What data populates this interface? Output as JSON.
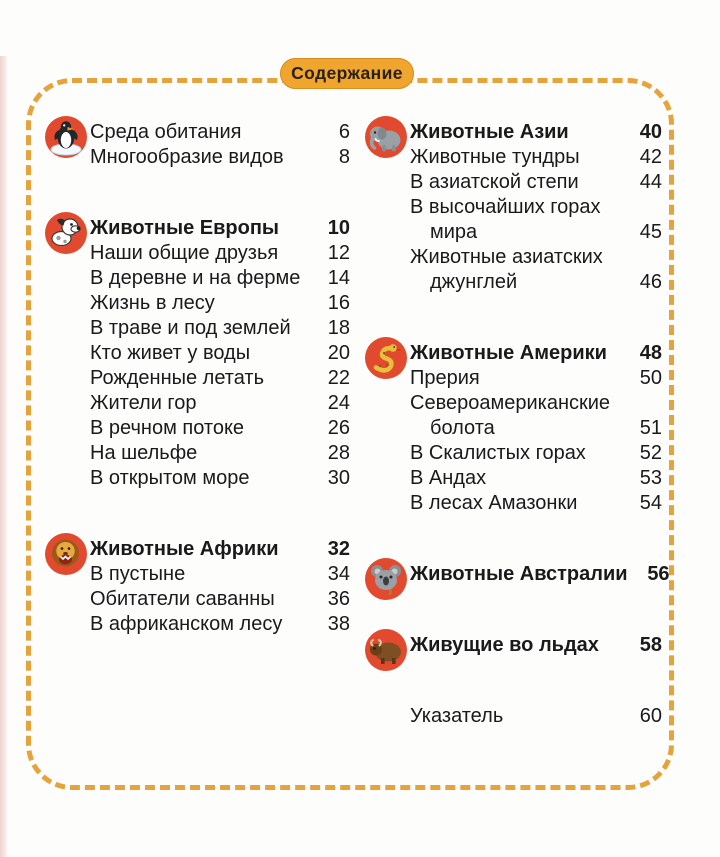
{
  "title": "Содержание",
  "colors": {
    "border_dash": "#e6a33c",
    "badge_bg": "#f0a52e",
    "badge_text": "#29200f",
    "icon_circle_bg": "#e14a2f",
    "text": "#1a1a1a"
  },
  "columns": [
    {
      "sections": [
        {
          "icon": "penguin-icon",
          "header": null,
          "rows": [
            {
              "label": "Среда обитания",
              "page": "6"
            },
            {
              "label": "Многообразие видов",
              "page": "8"
            }
          ]
        },
        {
          "icon": "dog-icon",
          "header": {
            "label": "Животные Европы",
            "page": "10"
          },
          "rows": [
            {
              "label": "Наши общие друзья",
              "page": "12"
            },
            {
              "label": "В деревне и на ферме",
              "page": "14"
            },
            {
              "label": "Жизнь в лесу",
              "page": "16"
            },
            {
              "label": "В траве и под землей",
              "page": "18"
            },
            {
              "label": "Кто живет у воды",
              "page": "20"
            },
            {
              "label": "Рожденные летать",
              "page": "22"
            },
            {
              "label": "Жители гор",
              "page": "24"
            },
            {
              "label": "В речном потоке",
              "page": "26"
            },
            {
              "label": "На шельфе",
              "page": "28"
            },
            {
              "label": "В открытом море",
              "page": "30"
            }
          ]
        },
        {
          "icon": "lion-icon",
          "header": {
            "label": "Животные Африки",
            "page": "32"
          },
          "rows": [
            {
              "label": "В пустыне",
              "page": "34"
            },
            {
              "label": "Обитатели саванны",
              "page": "36"
            },
            {
              "label": "В африканском лесу",
              "page": "38"
            }
          ]
        }
      ]
    },
    {
      "sections": [
        {
          "icon": "elephant-icon",
          "header": {
            "label": "Животные Азии",
            "page": "40"
          },
          "rows": [
            {
              "label": "Животные тундры",
              "page": "42"
            },
            {
              "label": "В азиатской степи",
              "page": "44"
            },
            {
              "label": "В высочайших горах",
              "page": ""
            },
            {
              "label": "мира",
              "page": "45",
              "indent": true
            },
            {
              "label": "Животные азиатских",
              "page": ""
            },
            {
              "label": "джунглей",
              "page": "46",
              "indent": true
            }
          ]
        },
        {
          "icon": "snake-icon",
          "header": {
            "label": "Животные Америки",
            "page": "48"
          },
          "rows": [
            {
              "label": "Прерия",
              "page": "50"
            },
            {
              "label": "Североамериканские",
              "page": ""
            },
            {
              "label": "болота",
              "page": "51",
              "indent": true
            },
            {
              "label": "В Скалистых горах",
              "page": "52"
            },
            {
              "label": "В Андах",
              "page": "53"
            },
            {
              "label": "В лесах Амазонки",
              "page": "54"
            }
          ]
        },
        {
          "icon": "koala-icon",
          "header": {
            "label": "Животные Австралии",
            "page": "56"
          },
          "rows": []
        },
        {
          "icon": "musk-ox-icon",
          "header": {
            "label": "Живущие во льдах",
            "page": "58"
          },
          "rows": []
        },
        {
          "icon": null,
          "header": null,
          "rows": [
            {
              "label": "Указатель",
              "page": "60"
            }
          ]
        }
      ]
    }
  ]
}
